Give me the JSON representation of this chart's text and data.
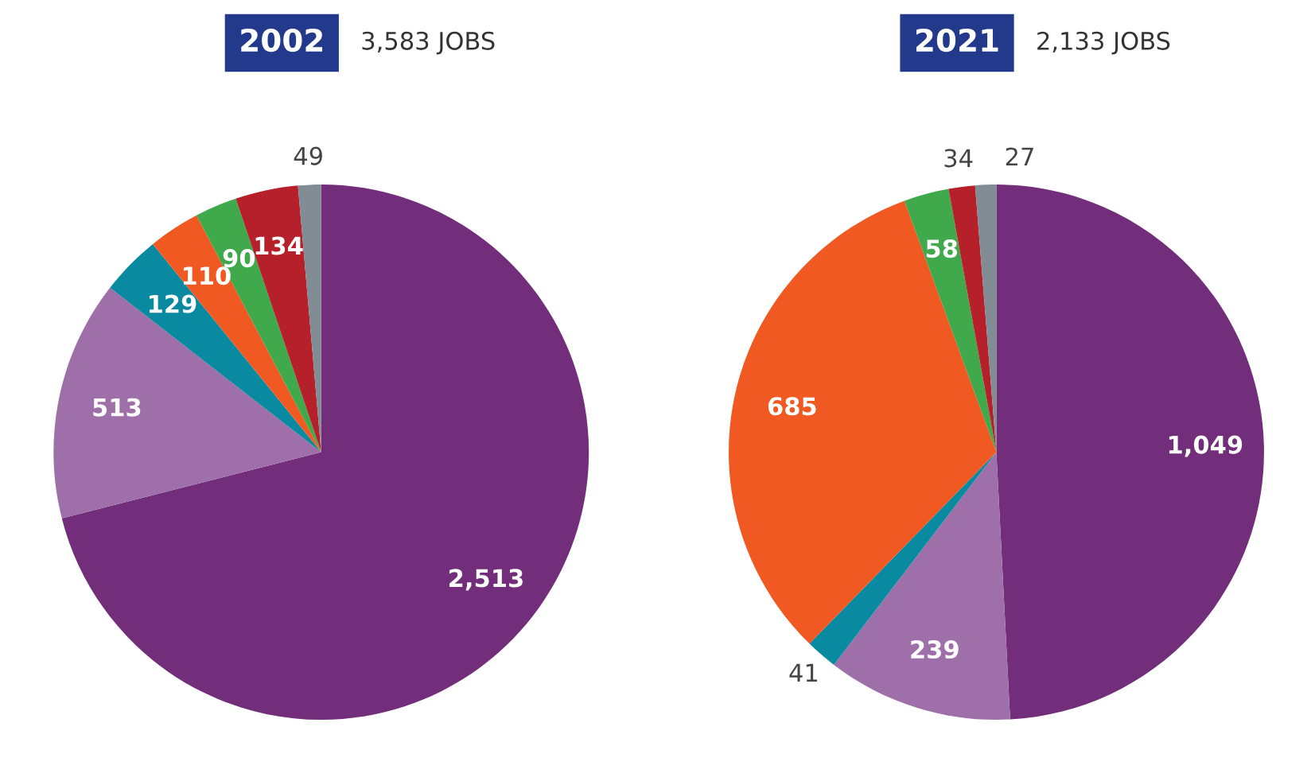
{
  "chart_data": [
    {
      "type": "pie",
      "title": "2002",
      "subtitle": "3,583 JOBS",
      "categories": [
        null,
        null,
        null,
        null,
        null,
        null,
        null
      ],
      "values": [
        2513,
        513,
        129,
        110,
        90,
        134,
        49
      ],
      "value_labels": [
        "2,513",
        "513",
        "129",
        "110",
        "90",
        "134",
        "49"
      ],
      "colors": [
        "#722e7a",
        "#9e6fa8",
        "#0a8aa0",
        "#f05a22",
        "#3fa94b",
        "#b5202a",
        "#828c94"
      ]
    },
    {
      "type": "pie",
      "title": "2021",
      "subtitle": "2,133 JOBS",
      "categories": [
        null,
        null,
        null,
        null,
        null,
        null,
        null
      ],
      "values": [
        1049,
        239,
        41,
        685,
        58,
        34,
        27
      ],
      "value_labels": [
        "1,049",
        "239",
        "41",
        "685",
        "58",
        "34",
        "27"
      ],
      "colors": [
        "#722e7a",
        "#9e6fa8",
        "#0a8aa0",
        "#f05a22",
        "#3fa94b",
        "#b5202a",
        "#828c94"
      ]
    }
  ]
}
